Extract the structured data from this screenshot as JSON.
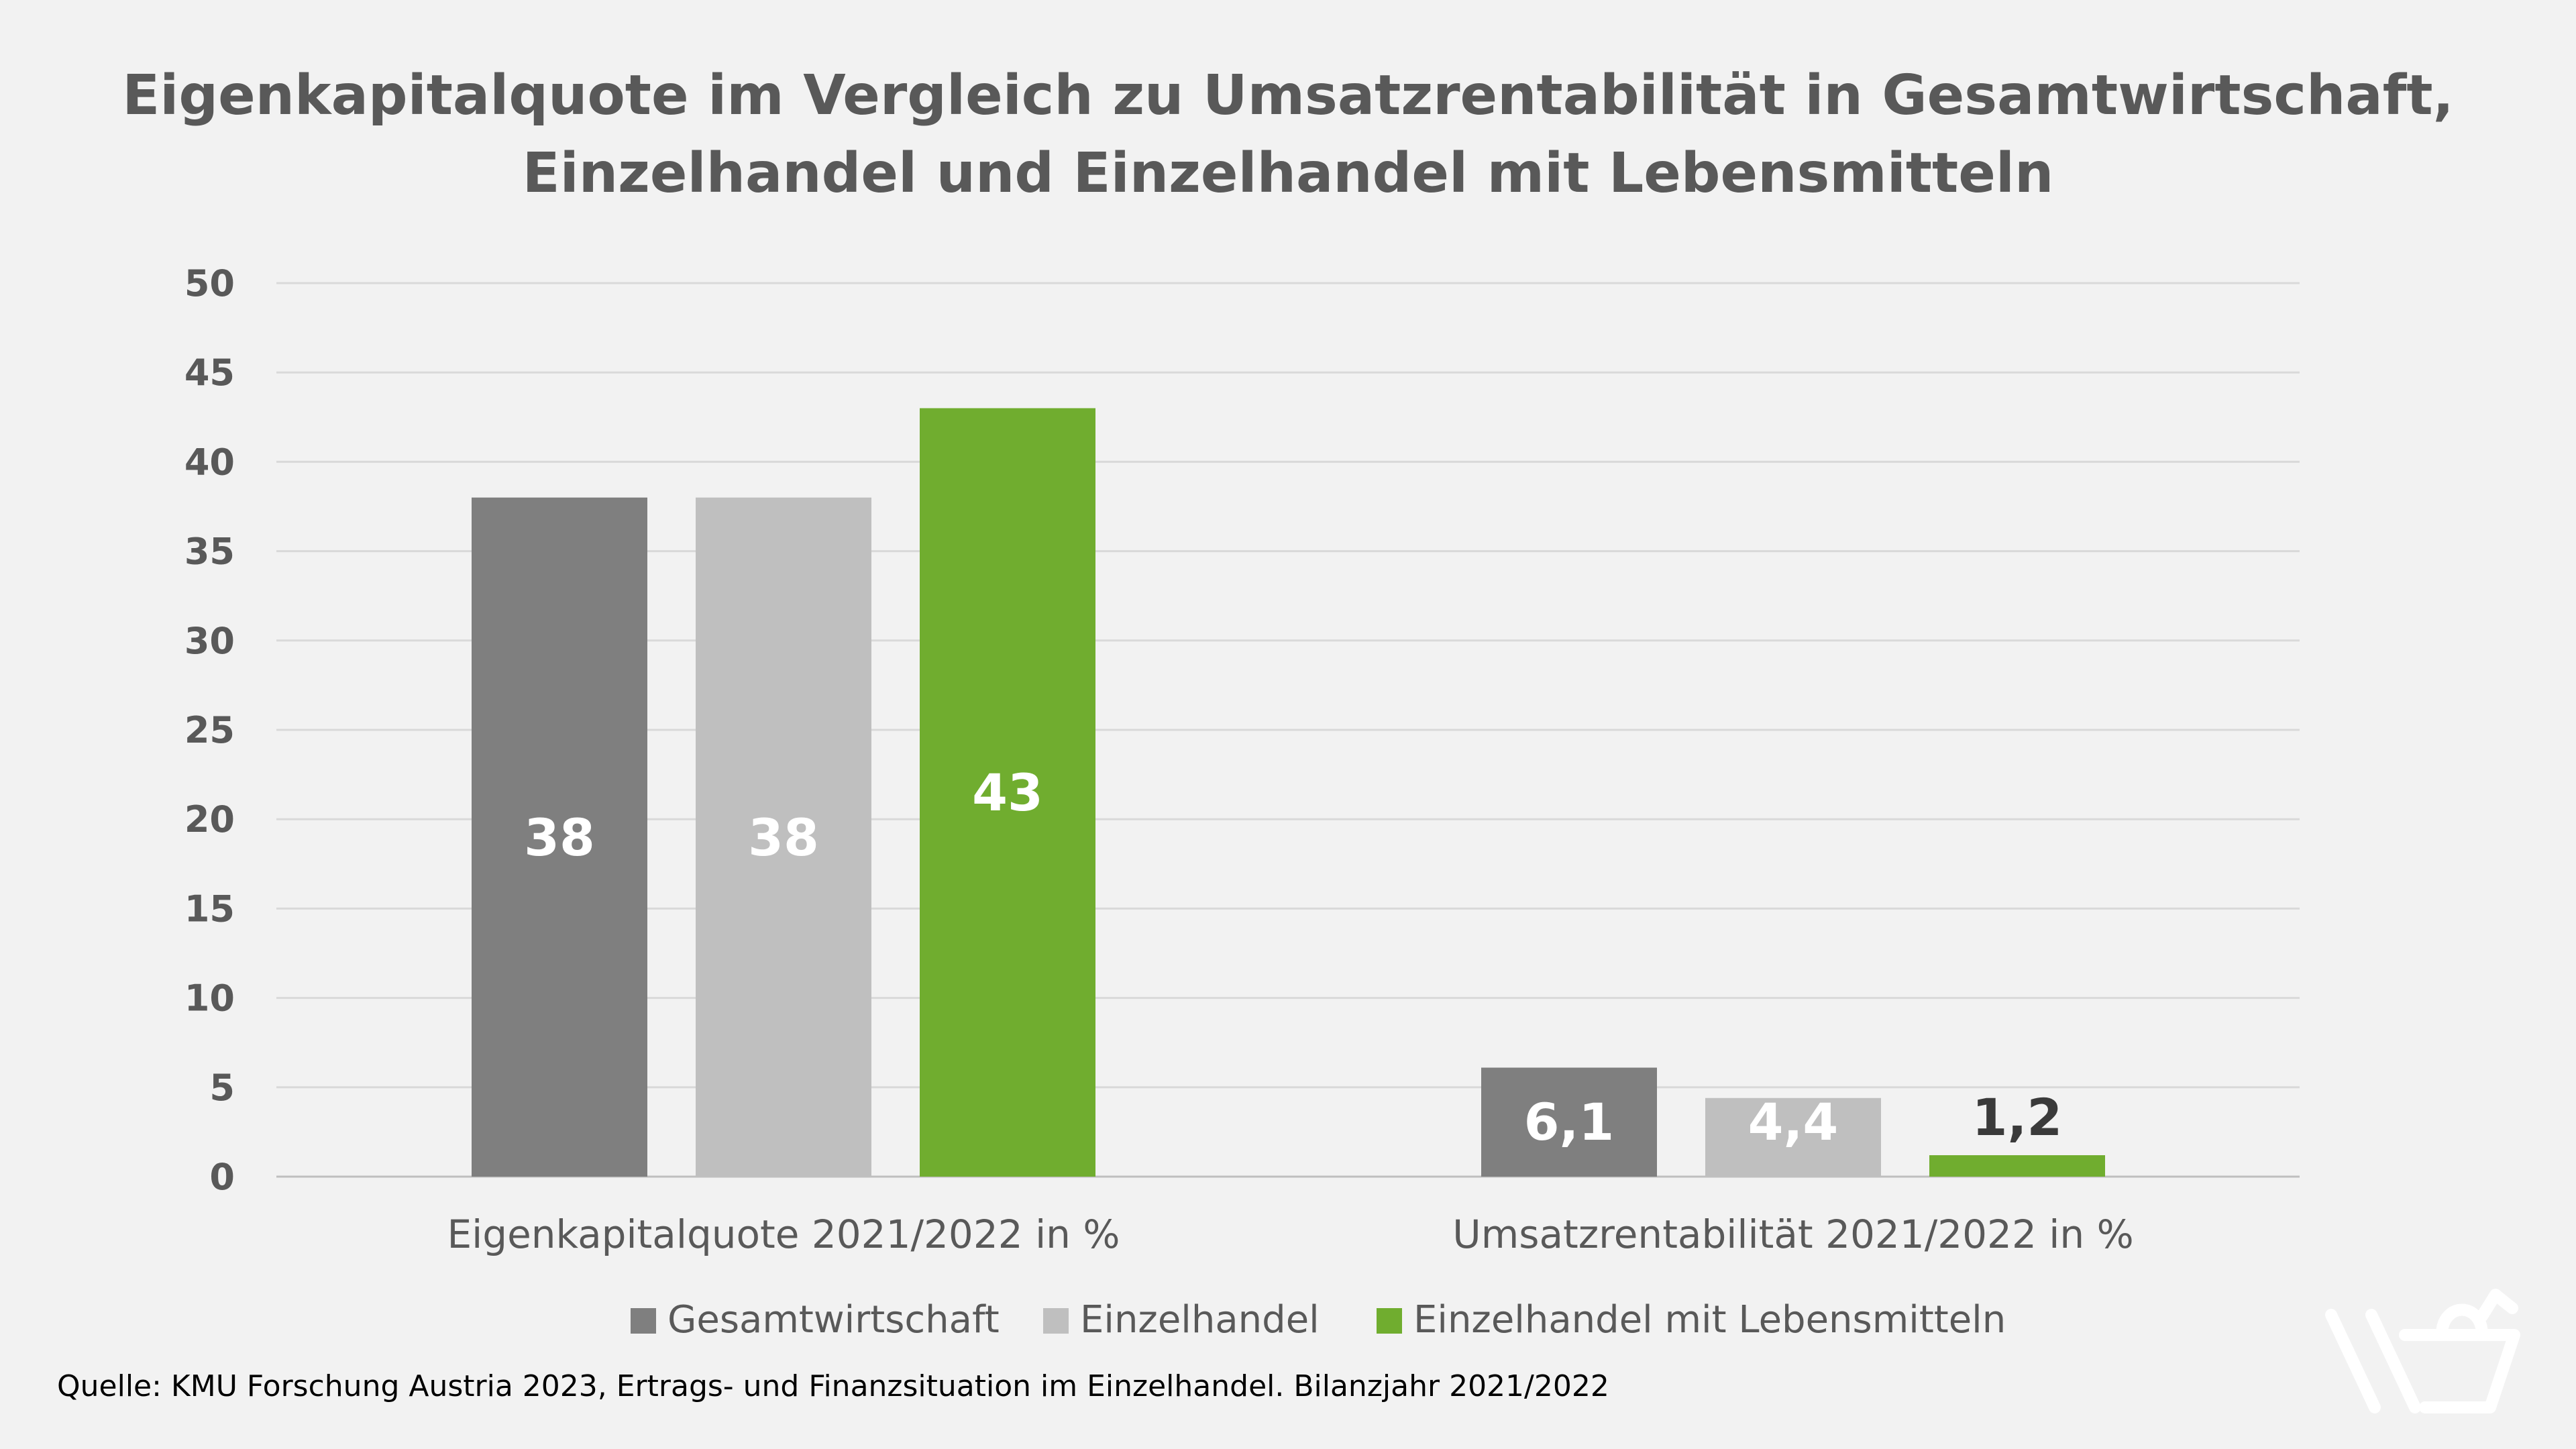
{
  "chart_data": {
    "type": "bar",
    "title": [
      "Eigenkapitalquote im Vergleich zu Umsatzrentabilität in Gesamtwirtschaft,",
      "Einzelhandel und Einzelhandel mit Lebensmitteln"
    ],
    "categories": [
      "Eigenkapitalquote 2021/2022 in %",
      "Umsatzrentabilität 2021/2022 in %"
    ],
    "series": [
      {
        "name": "Gesamtwirtschaft",
        "values": [
          38,
          6.1
        ],
        "labels": [
          "38",
          "6,1"
        ],
        "color": "#7f7f7f",
        "label_color": "#ffffff"
      },
      {
        "name": "Einzelhandel",
        "values": [
          38,
          4.4
        ],
        "labels": [
          "38",
          "4,4"
        ],
        "color": "#bfbfbf",
        "label_color": "#ffffff"
      },
      {
        "name": "Einzelhandel mit Lebensmitteln",
        "values": [
          43,
          1.2
        ],
        "labels": [
          "43",
          "1,2"
        ],
        "color": "#70ad2f",
        "label_color": "#ffffff"
      }
    ],
    "ylim": [
      0,
      50
    ],
    "yticks": [
      "0",
      "5",
      "10",
      "15",
      "20",
      "25",
      "30",
      "35",
      "40",
      "45",
      "50"
    ],
    "grid": true,
    "legend_position": "bottom",
    "outside_label_color": "#3a3a3a",
    "source": "Quelle: KMU Forschung Austria 2023, Ertrags- und Finanzsituation im Einzelhandel. Bilanzjahr 2021/2022",
    "logo_icon": "shopping-basket-logo-icon",
    "logo_color": "#ffffff"
  }
}
